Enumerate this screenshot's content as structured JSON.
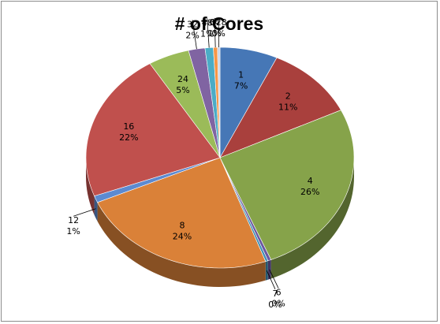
{
  "chart_data": {
    "type": "pie",
    "title": "# of Cores",
    "categories": [
      "1",
      "2",
      "4",
      "6",
      "7",
      "8",
      "12",
      "16",
      "24",
      "32",
      "48",
      "64",
      "128"
    ],
    "values": [
      7,
      11,
      26,
      0.4,
      0.3,
      24,
      1,
      22,
      5,
      2,
      1,
      0.5,
      0.3
    ],
    "percent_labels": [
      "7%",
      "11%",
      "26%",
      "0%",
      "0%",
      "24%",
      "1%",
      "22%",
      "5%",
      "2%",
      "1%",
      "1%",
      "0%"
    ],
    "colors": [
      "#4677B6",
      "#A9403D",
      "#86A34A",
      "#6A57A0",
      "#3D8FB3",
      "#DA8138",
      "#5C8AD0",
      "#C0504D",
      "#9BBB59",
      "#8064A2",
      "#4BACC6",
      "#F79646",
      "#C8D4E6"
    ],
    "style": "3d-tilted",
    "legend": "none"
  }
}
